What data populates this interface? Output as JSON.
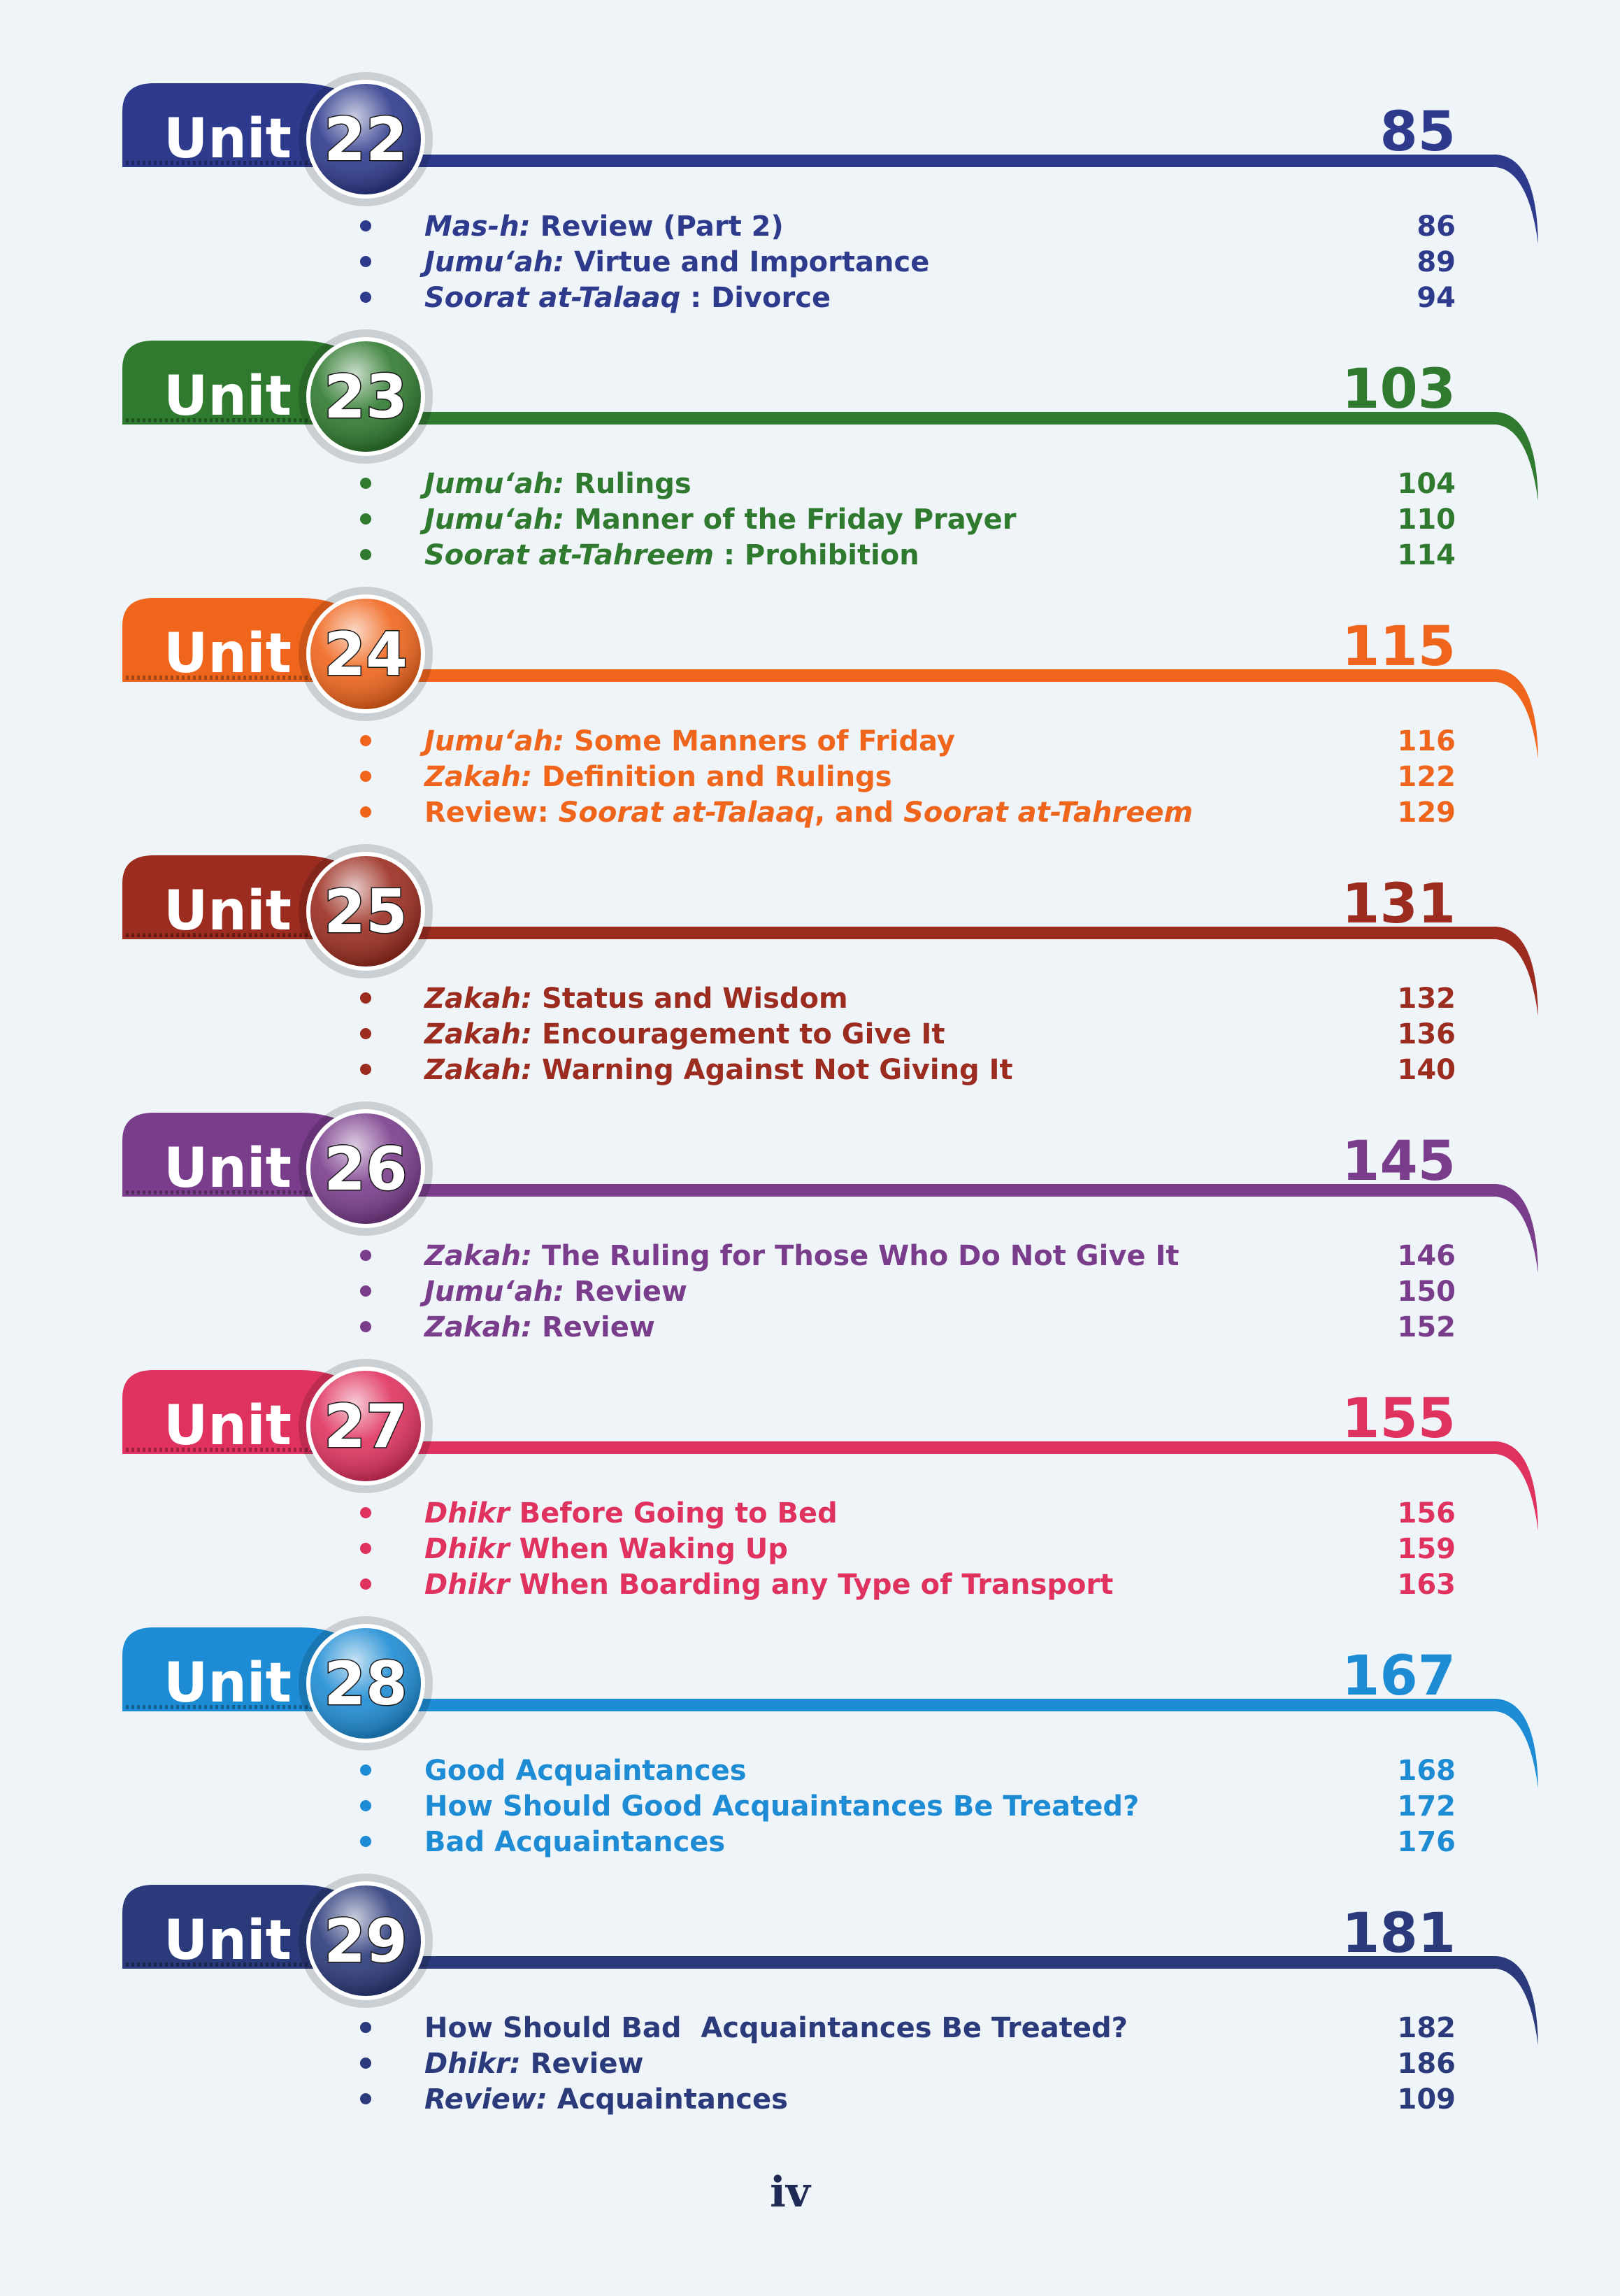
{
  "units": [
    {
      "label": "Unit",
      "number": "22",
      "page": "85",
      "color": "#2e3a8c",
      "items": [
        {
          "segments": [
            {
              "text": "Mas-h:",
              "italic": true
            },
            {
              "text": " Review (Part 2)"
            }
          ],
          "page": "86"
        },
        {
          "segments": [
            {
              "text": "Jumu‘ah:",
              "italic": true
            },
            {
              "text": " Virtue and Importance"
            }
          ],
          "page": "89"
        },
        {
          "segments": [
            {
              "text": "Soorat at-Talaaq",
              "italic": true
            },
            {
              "text": " : Divorce"
            }
          ],
          "page": "94"
        }
      ]
    },
    {
      "label": "Unit",
      "number": "23",
      "page": "103",
      "color": "#2f7a2f",
      "items": [
        {
          "segments": [
            {
              "text": "Jumu‘ah:",
              "italic": true
            },
            {
              "text": " Rulings"
            }
          ],
          "page": "104"
        },
        {
          "segments": [
            {
              "text": "Jumu‘ah:",
              "italic": true
            },
            {
              "text": " Manner of the Friday Prayer"
            }
          ],
          "page": "110"
        },
        {
          "segments": [
            {
              "text": "Soorat at-Tahreem",
              "italic": true
            },
            {
              "text": " : Prohibition"
            }
          ],
          "page": "114"
        }
      ]
    },
    {
      "label": "Unit",
      "number": "24",
      "page": "115",
      "color": "#f0651c",
      "items": [
        {
          "segments": [
            {
              "text": "Jumu‘ah:",
              "italic": true
            },
            {
              "text": " Some Manners of Friday"
            }
          ],
          "page": "116"
        },
        {
          "segments": [
            {
              "text": "Zakah:",
              "italic": true
            },
            {
              "text": " Definition and Rulings"
            }
          ],
          "page": "122"
        },
        {
          "segments": [
            {
              "text": "Review: "
            },
            {
              "text": "Soorat at-Talaaq",
              "italic": true
            },
            {
              "text": ", and "
            },
            {
              "text": "Soorat at-Tahreem",
              "italic": true
            }
          ],
          "page": "129"
        }
      ]
    },
    {
      "label": "Unit",
      "number": "25",
      "page": "131",
      "color": "#9b2c1f",
      "items": [
        {
          "segments": [
            {
              "text": "Zakah:",
              "italic": true
            },
            {
              "text": " Status and Wisdom"
            }
          ],
          "page": "132"
        },
        {
          "segments": [
            {
              "text": "Zakah:",
              "italic": true
            },
            {
              "text": " Encouragement to Give It"
            }
          ],
          "page": "136"
        },
        {
          "segments": [
            {
              "text": "Zakah:",
              "italic": true
            },
            {
              "text": " Warning Against Not Giving It"
            }
          ],
          "page": "140"
        }
      ]
    },
    {
      "label": "Unit",
      "number": "26",
      "page": "145",
      "color": "#7a3d8c",
      "items": [
        {
          "segments": [
            {
              "text": "Zakah:",
              "italic": true
            },
            {
              "text": " The Ruling for Those Who Do Not Give It"
            }
          ],
          "page": "146"
        },
        {
          "segments": [
            {
              "text": "Jumu‘ah:",
              "italic": true
            },
            {
              "text": " Review"
            }
          ],
          "page": "150"
        },
        {
          "segments": [
            {
              "text": "Zakah:",
              "italic": true
            },
            {
              "text": " Review"
            }
          ],
          "page": "152"
        }
      ]
    },
    {
      "label": "Unit",
      "number": "27",
      "page": "155",
      "color": "#e0325f",
      "items": [
        {
          "segments": [
            {
              "text": "Dhikr",
              "italic": true
            },
            {
              "text": " Before Going to Bed"
            }
          ],
          "page": "156"
        },
        {
          "segments": [
            {
              "text": "Dhikr",
              "italic": true
            },
            {
              "text": " When Waking Up"
            }
          ],
          "page": "159"
        },
        {
          "segments": [
            {
              "text": "Dhikr",
              "italic": true
            },
            {
              "text": " When Boarding any Type of Transport"
            }
          ],
          "page": "163"
        }
      ]
    },
    {
      "label": "Unit",
      "number": "28",
      "page": "167",
      "color": "#1e8cd4",
      "items": [
        {
          "segments": [
            {
              "text": "Good Acquaintances"
            }
          ],
          "page": "168"
        },
        {
          "segments": [
            {
              "text": "How Should Good Acquaintances Be Treated?"
            }
          ],
          "page": "172"
        },
        {
          "segments": [
            {
              "text": "Bad Acquaintances"
            }
          ],
          "page": "176"
        }
      ]
    },
    {
      "label": "Unit",
      "number": "29",
      "page": "181",
      "color": "#2b3a7a",
      "items": [
        {
          "segments": [
            {
              "text": "How Should Bad  Acquaintances Be Treated?"
            }
          ],
          "page": "182"
        },
        {
          "segments": [
            {
              "text": "Dhikr:",
              "italic": true
            },
            {
              "text": " Review"
            }
          ],
          "page": "186"
        },
        {
          "segments": [
            {
              "text": "Review:",
              "italic": true
            },
            {
              "text": " Acquaintances"
            }
          ],
          "page": "109"
        }
      ]
    }
  ],
  "footer": {
    "folio": "iv"
  }
}
